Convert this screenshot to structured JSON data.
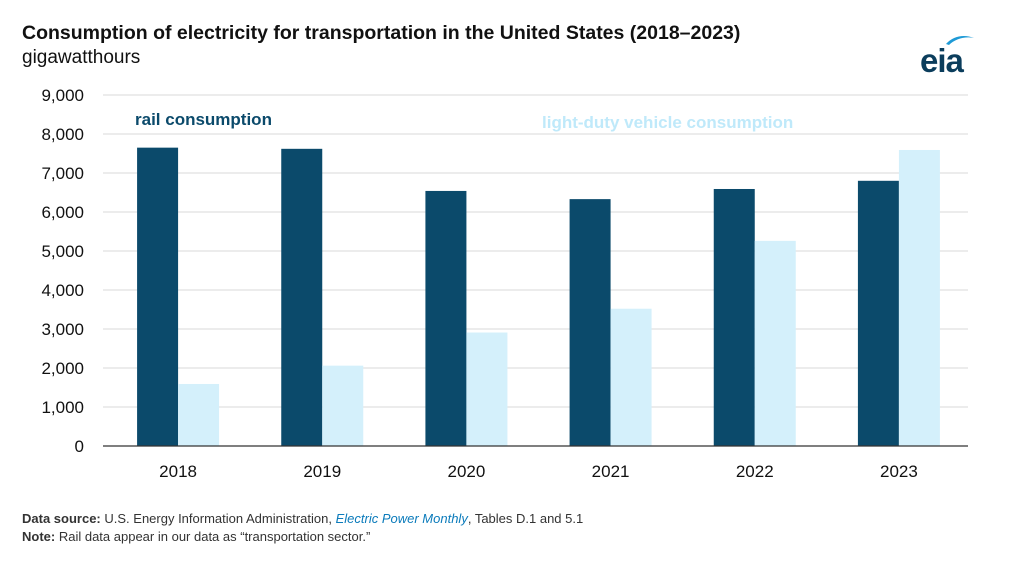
{
  "header": {
    "title": "Consumption of electricity for transportation in the United States (2018–2023)",
    "units": "gigawatthours",
    "logo_text": "eia"
  },
  "colors": {
    "rail": "#0b4a6b",
    "ldv": "#d4f0fb",
    "grid": "#d9d9d9",
    "link": "#0b7bbb"
  },
  "chart_data": {
    "type": "bar",
    "title": "Consumption of electricity for transportation in the United States (2018–2023)",
    "ylabel": "gigawatthours",
    "xlabel": "",
    "categories": [
      "2018",
      "2019",
      "2020",
      "2021",
      "2022",
      "2023"
    ],
    "ylim": [
      0,
      9000
    ],
    "yticks": [
      0,
      1000,
      2000,
      3000,
      4000,
      5000,
      6000,
      7000,
      8000,
      9000
    ],
    "ytick_labels": [
      "0",
      "1,000",
      "2,000",
      "3,000",
      "4,000",
      "5,000",
      "6,000",
      "7,000",
      "8,000",
      "9,000"
    ],
    "grid": true,
    "series": [
      {
        "name": "rail consumption",
        "color_key": "rail",
        "values": [
          7650,
          7620,
          6540,
          6330,
          6590,
          6800
        ]
      },
      {
        "name": "light-duty vehicle consumption",
        "color_key": "ldv",
        "values": [
          1590,
          2060,
          2910,
          3520,
          5260,
          7590
        ]
      }
    ]
  },
  "footer": {
    "source_label": "Data source:",
    "source_text_1": "U.S. Energy Information Administration,",
    "source_link": "Electric Power Monthly",
    "source_text_2": ", Tables D.1 and 5.1",
    "note_label": "Note:",
    "note_text": "Rail data appear in our data as “transportation sector.”"
  }
}
